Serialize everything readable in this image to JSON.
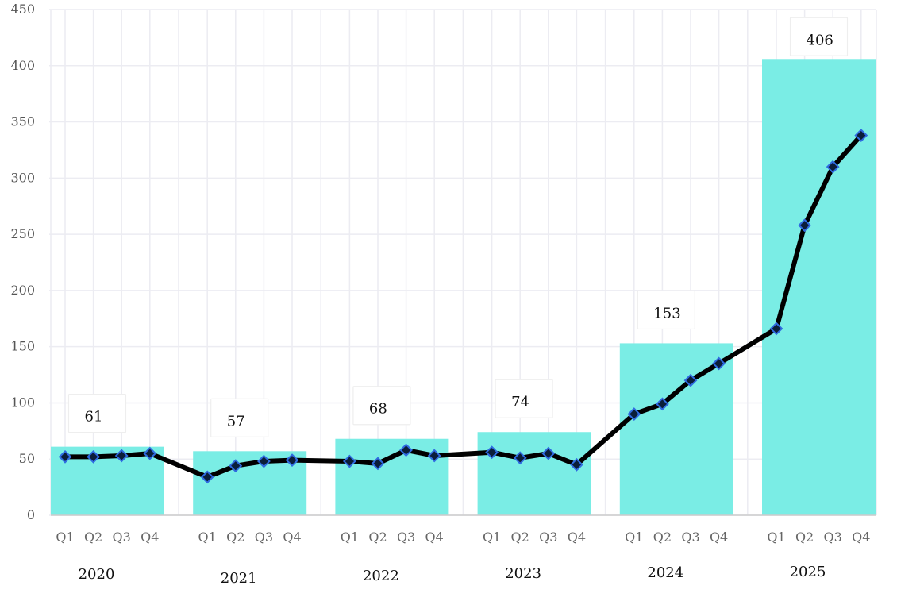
{
  "chart_data": {
    "type": "bar+line",
    "title": "",
    "xlabel": "",
    "ylabel": "",
    "ylim": [
      0,
      450
    ],
    "yticks": [
      0,
      50,
      100,
      150,
      200,
      250,
      300,
      350,
      400,
      450
    ],
    "grid": true,
    "legend": "none",
    "colors": {
      "bar": "#7aede5",
      "line": "#000000",
      "marker_fill": "#0b1e3a",
      "marker_edge": "#2f6be0",
      "grid": "#ececf2",
      "axis": "#cccccc"
    },
    "years": [
      "2020",
      "2021",
      "2022",
      "2023",
      "2024",
      "2025"
    ],
    "quarters": [
      "Q1",
      "Q2",
      "Q3",
      "Q4"
    ],
    "bars": {
      "values": [
        61,
        57,
        68,
        74,
        153,
        406
      ],
      "labels": [
        "61",
        "57",
        "68",
        "74",
        "153",
        "406"
      ]
    },
    "line": {
      "values": [
        [
          52,
          52,
          53,
          55
        ],
        [
          34,
          44,
          48,
          49
        ],
        [
          48,
          46,
          58,
          53
        ],
        [
          56,
          51,
          55,
          45
        ],
        [
          90,
          99,
          120,
          135
        ],
        [
          166,
          258,
          310,
          338
        ]
      ]
    }
  }
}
